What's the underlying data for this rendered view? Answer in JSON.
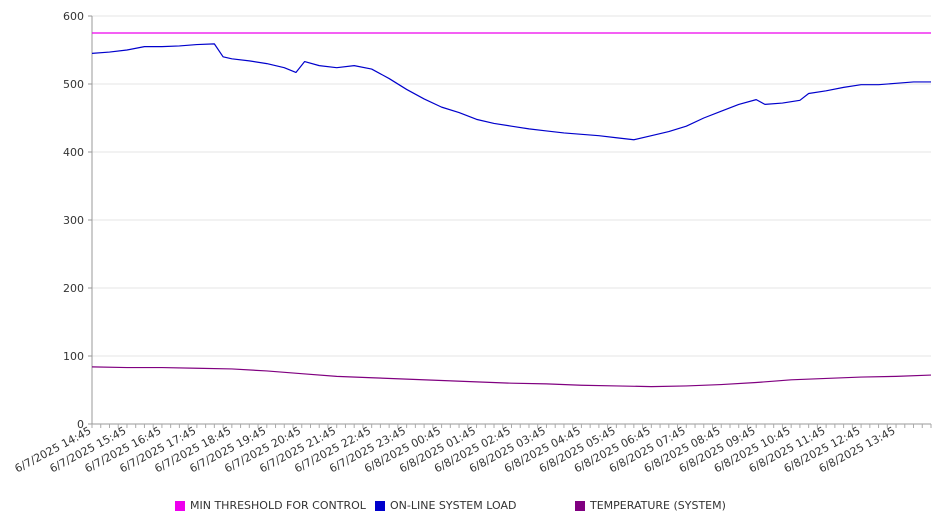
{
  "chart_data": {
    "type": "line",
    "title": "",
    "xlabel": "",
    "ylabel": "",
    "ylim": [
      0,
      600
    ],
    "yticks": [
      0,
      100,
      200,
      300,
      400,
      500,
      600
    ],
    "grid": "horizontal",
    "legend_position": "bottom",
    "x_start": "6/7/2025 14:45",
    "x_end": "6/8/2025 14:45",
    "x_ticks": [
      "6/7/2025 14:45",
      "6/7/2025 15:45",
      "6/7/2025 16:45",
      "6/7/2025 17:45",
      "6/7/2025 18:45",
      "6/7/2025 19:45",
      "6/7/2025 20:45",
      "6/7/2025 21:45",
      "6/7/2025 22:45",
      "6/7/2025 23:45",
      "6/8/2025 00:45",
      "6/8/2025 01:45",
      "6/8/2025 02:45",
      "6/8/2025 03:45",
      "6/8/2025 04:45",
      "6/8/2025 05:45",
      "6/8/2025 06:45",
      "6/8/2025 07:45",
      "6/8/2025 08:45",
      "6/8/2025 09:45",
      "6/8/2025 10:45",
      "6/8/2025 11:45",
      "6/8/2025 12:45",
      "6/8/2025 13:45"
    ],
    "series": [
      {
        "name": "MIN THRESHOLD FOR CONTROL",
        "color": "#ee00ee",
        "points": [
          [
            "6/7/2025 14:45",
            575
          ],
          [
            "6/8/2025 14:45",
            575
          ]
        ]
      },
      {
        "name": "ON-LINE SYSTEM LOAD",
        "color": "#0000cc",
        "points": [
          [
            "6/7/2025 14:45",
            545
          ],
          [
            "6/7/2025 15:15",
            547
          ],
          [
            "6/7/2025 15:45",
            550
          ],
          [
            "6/7/2025 16:15",
            555
          ],
          [
            "6/7/2025 16:45",
            555
          ],
          [
            "6/7/2025 17:15",
            556
          ],
          [
            "6/7/2025 17:45",
            558
          ],
          [
            "6/7/2025 18:15",
            559
          ],
          [
            "6/7/2025 18:30",
            540
          ],
          [
            "6/7/2025 18:45",
            537
          ],
          [
            "6/7/2025 19:15",
            534
          ],
          [
            "6/7/2025 19:45",
            530
          ],
          [
            "6/7/2025 20:15",
            524
          ],
          [
            "6/7/2025 20:35",
            517
          ],
          [
            "6/7/2025 20:50",
            533
          ],
          [
            "6/7/2025 21:15",
            527
          ],
          [
            "6/7/2025 21:45",
            524
          ],
          [
            "6/7/2025 22:15",
            527
          ],
          [
            "6/7/2025 22:45",
            522
          ],
          [
            "6/7/2025 23:15",
            508
          ],
          [
            "6/7/2025 23:45",
            492
          ],
          [
            "6/8/2025 00:15",
            478
          ],
          [
            "6/8/2025 00:45",
            466
          ],
          [
            "6/8/2025 01:15",
            458
          ],
          [
            "6/8/2025 01:45",
            448
          ],
          [
            "6/8/2025 02:15",
            442
          ],
          [
            "6/8/2025 02:45",
            438
          ],
          [
            "6/8/2025 03:15",
            434
          ],
          [
            "6/8/2025 03:45",
            431
          ],
          [
            "6/8/2025 04:15",
            428
          ],
          [
            "6/8/2025 04:45",
            426
          ],
          [
            "6/8/2025 05:15",
            424
          ],
          [
            "6/8/2025 05:45",
            421
          ],
          [
            "6/8/2025 06:15",
            418
          ],
          [
            "6/8/2025 06:45",
            424
          ],
          [
            "6/8/2025 07:15",
            430
          ],
          [
            "6/8/2025 07:45",
            438
          ],
          [
            "6/8/2025 08:15",
            450
          ],
          [
            "6/8/2025 08:45",
            460
          ],
          [
            "6/8/2025 09:15",
            470
          ],
          [
            "6/8/2025 09:45",
            477
          ],
          [
            "6/8/2025 10:00",
            470
          ],
          [
            "6/8/2025 10:30",
            472
          ],
          [
            "6/8/2025 11:00",
            476
          ],
          [
            "6/8/2025 11:15",
            486
          ],
          [
            "6/8/2025 11:45",
            490
          ],
          [
            "6/8/2025 12:15",
            495
          ],
          [
            "6/8/2025 12:45",
            499
          ],
          [
            "6/8/2025 13:15",
            499
          ],
          [
            "6/8/2025 13:45",
            501
          ],
          [
            "6/8/2025 14:15",
            503
          ],
          [
            "6/8/2025 14:45",
            503
          ]
        ]
      },
      {
        "name": "TEMPERATURE (SYSTEM)",
        "color": "#800080",
        "points": [
          [
            "6/7/2025 14:45",
            84
          ],
          [
            "6/7/2025 15:45",
            83
          ],
          [
            "6/7/2025 16:45",
            83
          ],
          [
            "6/7/2025 17:45",
            82
          ],
          [
            "6/7/2025 18:45",
            81
          ],
          [
            "6/7/2025 19:45",
            78
          ],
          [
            "6/7/2025 20:45",
            74
          ],
          [
            "6/7/2025 21:45",
            70
          ],
          [
            "6/7/2025 22:45",
            68
          ],
          [
            "6/7/2025 23:45",
            66
          ],
          [
            "6/8/2025 00:45",
            64
          ],
          [
            "6/8/2025 01:45",
            62
          ],
          [
            "6/8/2025 02:45",
            60
          ],
          [
            "6/8/2025 03:45",
            59
          ],
          [
            "6/8/2025 04:45",
            57
          ],
          [
            "6/8/2025 05:45",
            56
          ],
          [
            "6/8/2025 06:45",
            55
          ],
          [
            "6/8/2025 07:45",
            56
          ],
          [
            "6/8/2025 08:45",
            58
          ],
          [
            "6/8/2025 09:45",
            61
          ],
          [
            "6/8/2025 10:45",
            65
          ],
          [
            "6/8/2025 11:45",
            67
          ],
          [
            "6/8/2025 12:45",
            69
          ],
          [
            "6/8/2025 13:45",
            70
          ],
          [
            "6/8/2025 14:45",
            72
          ]
        ]
      }
    ]
  },
  "legend": {
    "items": [
      {
        "label": "MIN THRESHOLD FOR CONTROL",
        "color": "#ee00ee"
      },
      {
        "label": "ON-LINE SYSTEM LOAD",
        "color": "#0000cc"
      },
      {
        "label": "TEMPERATURE (SYSTEM)",
        "color": "#800080"
      }
    ]
  }
}
